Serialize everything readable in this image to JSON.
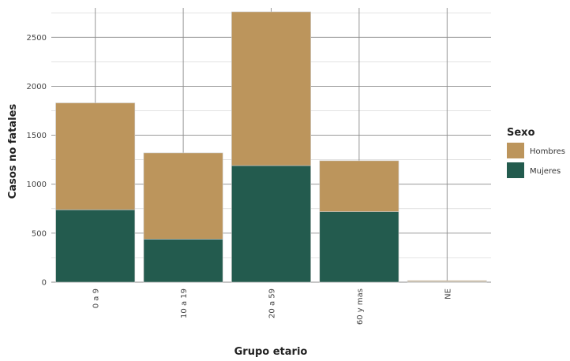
{
  "chart_data": {
    "type": "bar",
    "stacked": true,
    "categories": [
      "0 a 9",
      "10 a 19",
      "20 a 59",
      "60 y mas",
      "NE"
    ],
    "series": [
      {
        "name": "Mujeres",
        "values": [
          740,
          440,
          1190,
          720,
          5
        ],
        "color": "#235b4e"
      },
      {
        "name": "Hombres",
        "values": [
          1090,
          880,
          1570,
          520,
          10
        ],
        "color": "#bc955c"
      }
    ],
    "xlabel": "Grupo etario",
    "ylabel": "Casos no fatales",
    "ylim": [
      0,
      2800
    ],
    "yticks": [
      0,
      500,
      1000,
      1500,
      2000,
      2500
    ],
    "legend": {
      "title": "Sexo",
      "position": "right",
      "order": [
        "Hombres",
        "Mujeres"
      ]
    },
    "grid": true
  }
}
